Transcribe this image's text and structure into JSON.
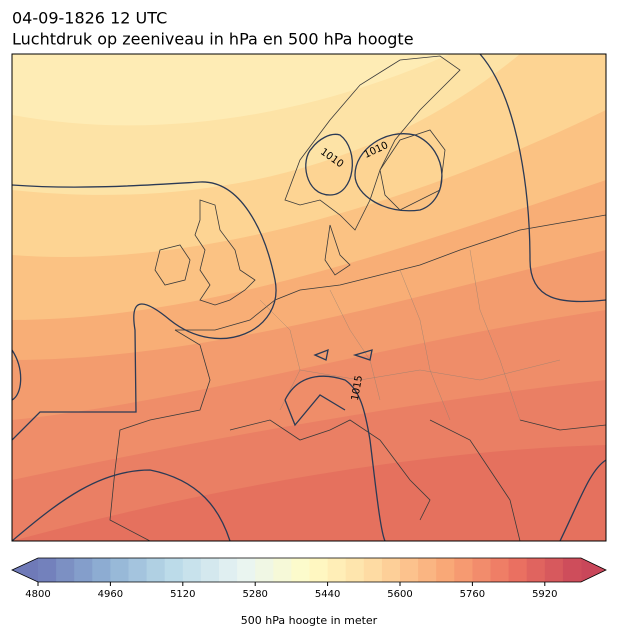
{
  "title": "04-09-1826 12 UTC",
  "subtitle": "Luchtdruk op zeeniveau in hPa en 500 hPa hoogte",
  "map": {
    "contour_labels": [
      "1010",
      "1010",
      "1015"
    ]
  },
  "colorbar": {
    "label": "500 hPa hoogte in meter",
    "clim": [
      4800,
      6000
    ],
    "level_step": 40,
    "ticks": [
      4800,
      4960,
      5120,
      5280,
      5440,
      5600,
      5760,
      5920
    ]
  }
}
